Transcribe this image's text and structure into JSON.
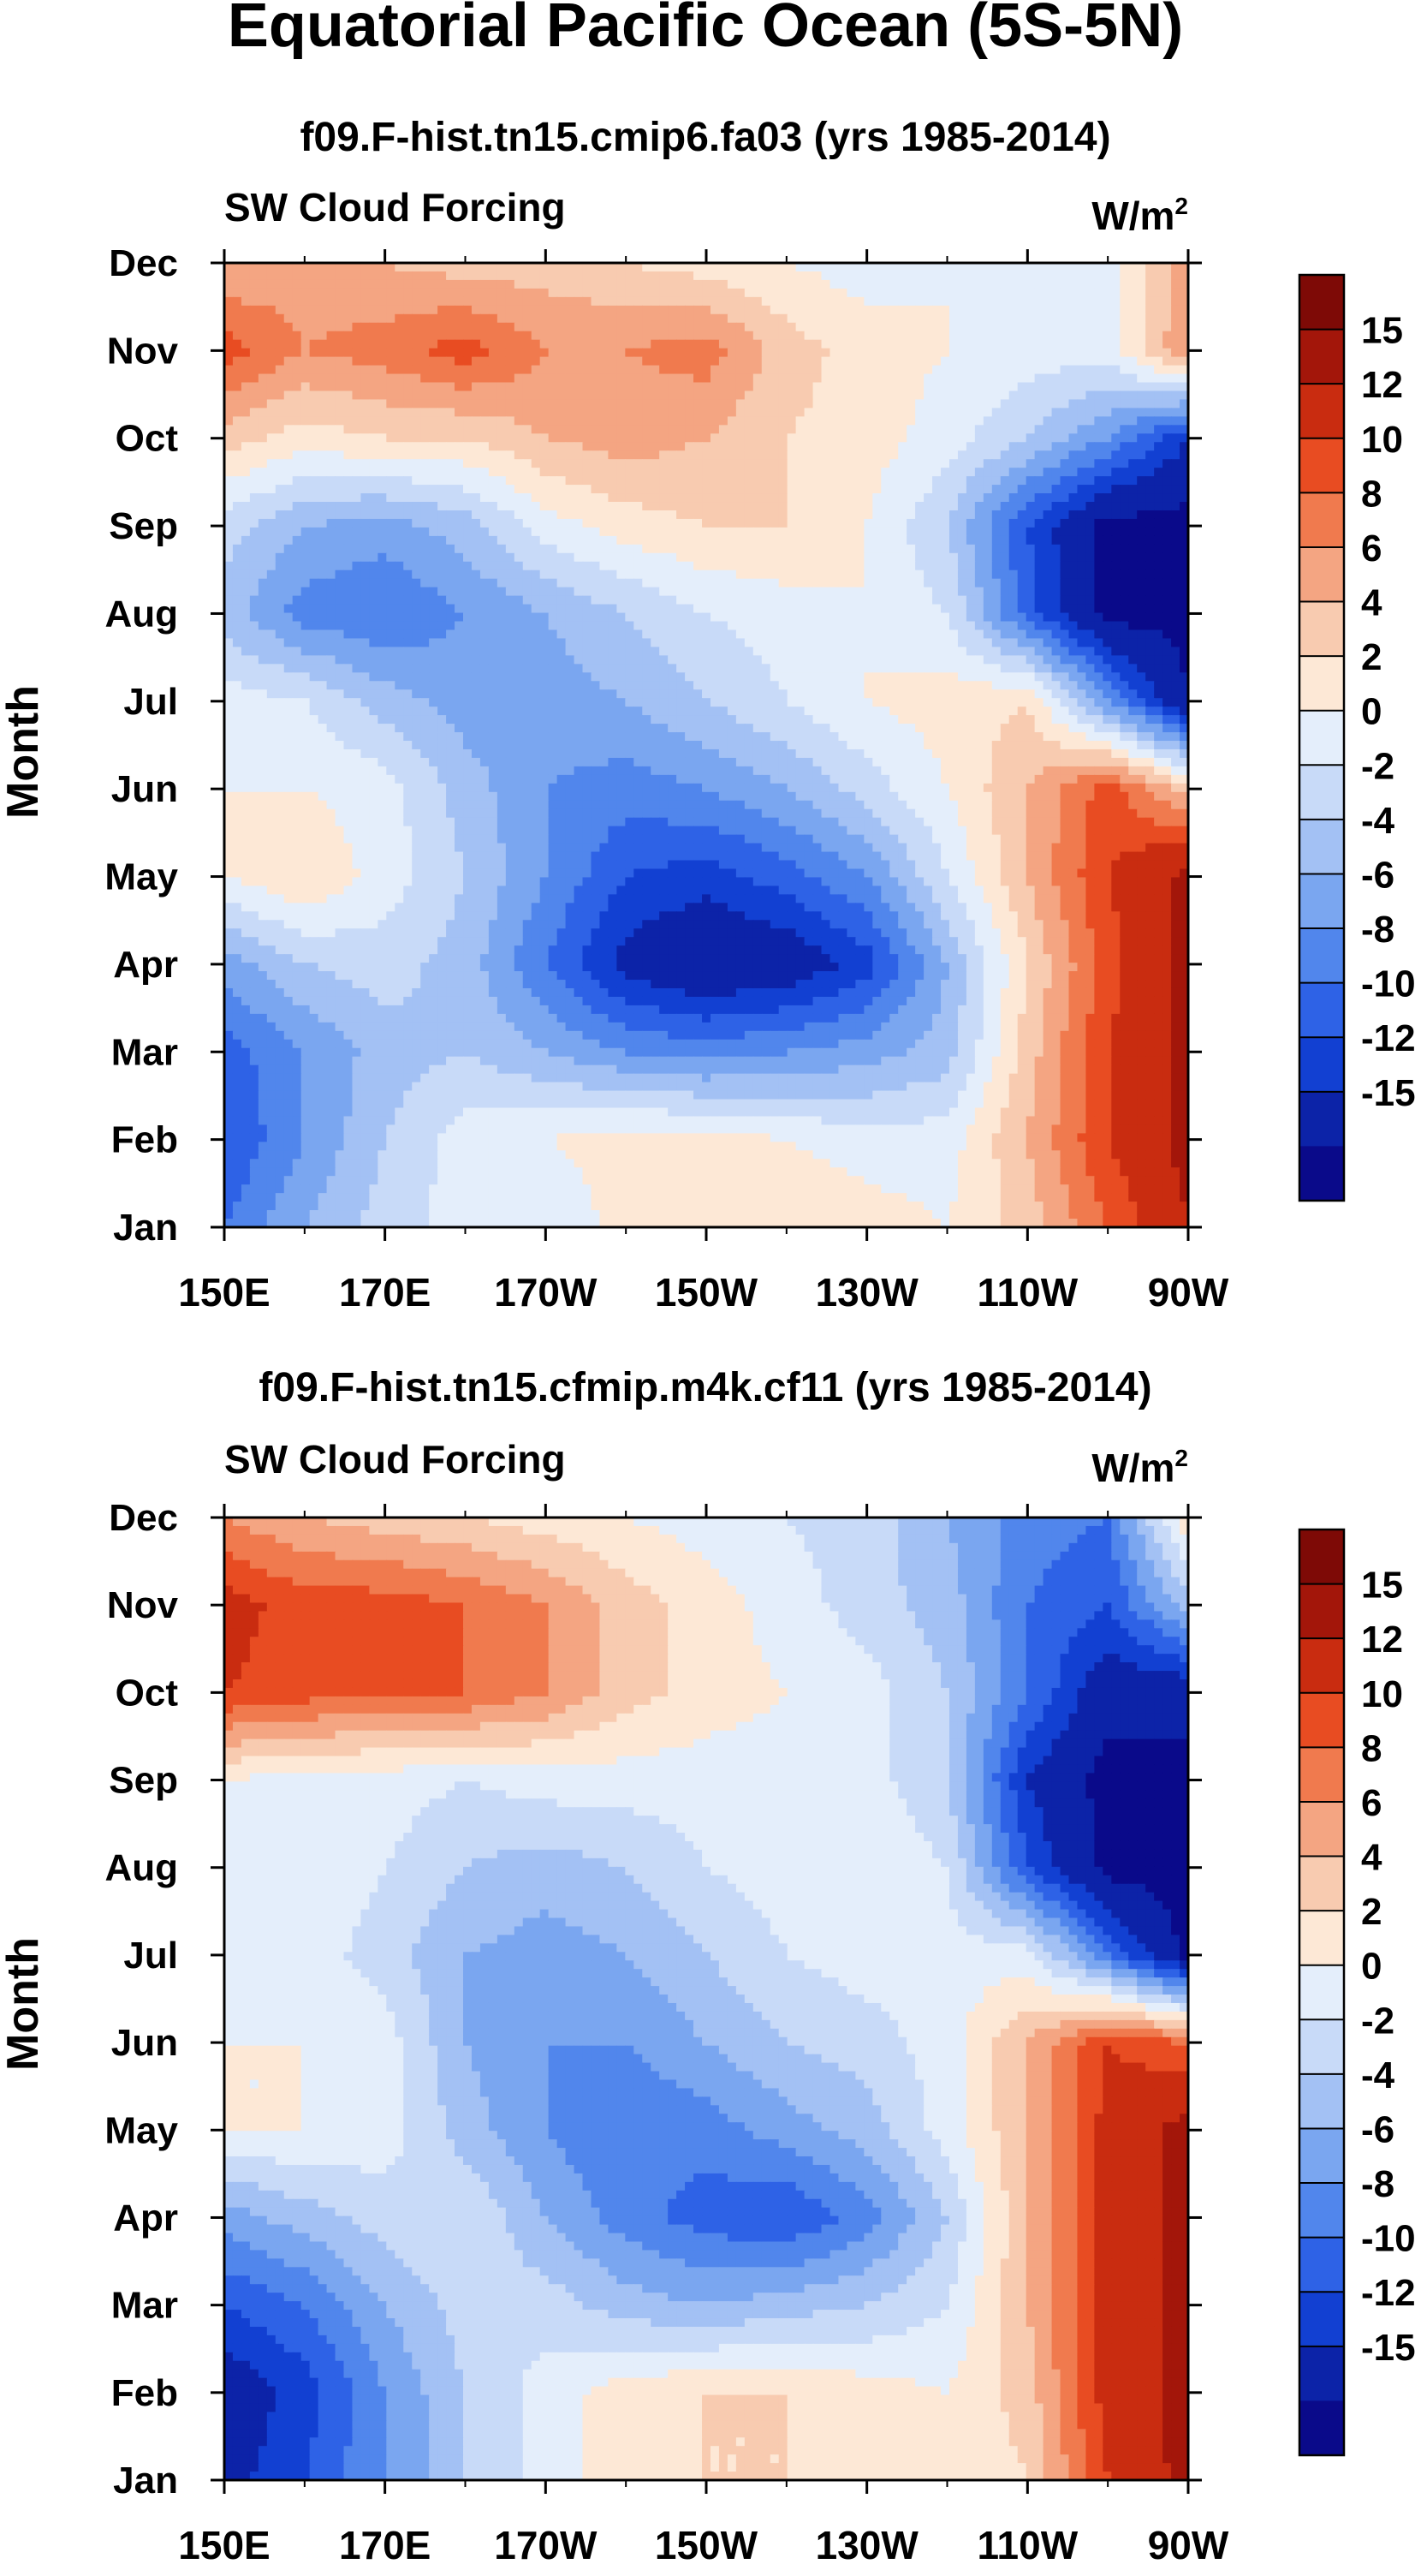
{
  "figure": {
    "title": "Equatorial Pacific Ocean (5S-5N)"
  },
  "colors": [
    "#0a0a8a",
    "#0c23a8",
    "#1240d2",
    "#2e62e6",
    "#5186ec",
    "#7aa6f0",
    "#a3c1f4",
    "#c8daf8",
    "#e4eefb",
    "#fde8d6",
    "#f8cbb0",
    "#f4a582",
    "#f07a4e",
    "#e84c22",
    "#c92c10",
    "#a3160a",
    "#7e0a06"
  ],
  "chart_data": [
    {
      "type": "heatmap",
      "title": "f09.F-hist.tn15.cmip6.fa03 (yrs 1985-2014)",
      "left_label": "SW Cloud Forcing",
      "units_label": "W/m",
      "units_sup": "2",
      "ylabel": "Month",
      "xlabel": "",
      "x_ticks": [
        "150E",
        "170E",
        "170W",
        "150W",
        "130W",
        "110W",
        "90W"
      ],
      "x_values": [
        150,
        160,
        170,
        180,
        190,
        200,
        210,
        220,
        230,
        240,
        250,
        260,
        270
      ],
      "y_ticks": [
        "Jan",
        "Feb",
        "Mar",
        "Apr",
        "May",
        "Jun",
        "Jul",
        "Aug",
        "Sep",
        "Oct",
        "Nov",
        "Dec"
      ],
      "colorbar": {
        "levels": [
          -15,
          -12,
          -10,
          -8,
          -6,
          -4,
          -2,
          0,
          2,
          4,
          6,
          8,
          10,
          12,
          15
        ],
        "labels": [
          "15",
          "12",
          "10",
          "8",
          "6",
          "4",
          "2",
          "0",
          "-2",
          "-4",
          "-6",
          "-8",
          "-10",
          "-12",
          "-15"
        ]
      },
      "z": [
        [
          -8,
          -4,
          -1,
          1,
          0,
          3,
          4,
          4,
          3,
          2,
          5,
          10,
          15
        ],
        [
          -10,
          -6,
          -2,
          1,
          2,
          3,
          3,
          2,
          1,
          1,
          6,
          12,
          16
        ],
        [
          -9,
          -6,
          -3,
          -2,
          -4,
          -6,
          -7,
          -6,
          -5,
          -3,
          5,
          12,
          16
        ],
        [
          -5,
          -2,
          -1,
          -3,
          -8,
          -13,
          -15,
          -14,
          -11,
          -4,
          4,
          11,
          16
        ],
        [
          2,
          4,
          1,
          -2,
          -6,
          -10,
          -11,
          -9,
          -6,
          0,
          6,
          12,
          16
        ],
        [
          2,
          2,
          1,
          -3,
          -6,
          -7,
          -6,
          -4,
          -1,
          2,
          6,
          11,
          5
        ],
        [
          1,
          0,
          -3,
          -5,
          -5,
          -4,
          -2,
          0,
          2,
          3,
          4,
          -6,
          -15
        ],
        [
          -3,
          -7,
          -8,
          -6,
          -4,
          -2,
          0,
          1,
          2,
          0,
          -9,
          -16,
          -16
        ],
        [
          -1,
          -4,
          -5,
          -3,
          1,
          3,
          4,
          4,
          2,
          -2,
          -10,
          -16,
          -16
        ],
        [
          5,
          3,
          4,
          4,
          6,
          7,
          6,
          4,
          3,
          1,
          -2,
          -6,
          -12
        ],
        [
          11,
          8,
          9,
          11,
          8,
          8,
          9,
          5,
          3,
          2,
          1,
          1,
          8
        ],
        [
          6,
          7,
          6,
          5,
          5,
          4,
          3,
          2,
          1,
          2,
          1,
          1,
          7
        ]
      ]
    },
    {
      "type": "heatmap",
      "title": "f09.F-hist.tn15.cfmip.m4k.cf11 (yrs 1985-2014)",
      "left_label": "SW Cloud Forcing",
      "units_label": "W/m",
      "units_sup": "2",
      "ylabel": "Month",
      "xlabel": "",
      "x_ticks": [
        "150E",
        "170E",
        "170W",
        "150W",
        "130W",
        "110W",
        "90W"
      ],
      "x_values": [
        150,
        160,
        170,
        180,
        190,
        200,
        210,
        220,
        230,
        240,
        250,
        260,
        270
      ],
      "y_ticks": [
        "Jan",
        "Feb",
        "Mar",
        "Apr",
        "May",
        "Jun",
        "Jul",
        "Aug",
        "Sep",
        "Oct",
        "Nov",
        "Dec"
      ],
      "colorbar": {
        "levels": [
          -15,
          -12,
          -10,
          -8,
          -6,
          -4,
          -2,
          0,
          2,
          4,
          6,
          8,
          10,
          12,
          15
        ],
        "labels": [
          "15",
          "12",
          "10",
          "8",
          "6",
          "4",
          "2",
          "0",
          "-2",
          "-4",
          "-6",
          "-8",
          "-10",
          "-12",
          "-15"
        ]
      },
      "z": [
        [
          -13,
          -10,
          -6,
          -2,
          1,
          3,
          4,
          4,
          3,
          2,
          4,
          12,
          16
        ],
        [
          -14,
          -11,
          -6,
          -2,
          1,
          3,
          4,
          4,
          3,
          2,
          5,
          13,
          16
        ],
        [
          -10,
          -8,
          -4,
          -1,
          -1,
          -3,
          -4,
          -3,
          -2,
          0,
          6,
          13,
          16
        ],
        [
          -5,
          -3,
          -1,
          0,
          -4,
          -7,
          -9,
          -10,
          -7,
          -2,
          6,
          13,
          16
        ],
        [
          2,
          2,
          1,
          -3,
          -6,
          -8,
          -7,
          -5,
          -3,
          1,
          6,
          13,
          16
        ],
        [
          2,
          2,
          1,
          -4,
          -6,
          -6,
          -4,
          -2,
          -1,
          1,
          6,
          12,
          10
        ],
        [
          1,
          1,
          -1,
          -4,
          -5,
          -4,
          -2,
          0,
          1,
          1,
          1,
          -8,
          -16
        ],
        [
          1,
          2,
          0,
          -2,
          -3,
          -2,
          0,
          1,
          2,
          0,
          -10,
          -16,
          -16
        ],
        [
          2,
          1,
          1,
          0,
          1,
          1,
          1,
          1,
          1,
          -2,
          -12,
          -16,
          -16
        ],
        [
          12,
          11,
          10,
          10,
          8,
          5,
          3,
          2,
          1,
          -2,
          -8,
          -14,
          -14
        ],
        [
          13,
          11,
          11,
          10,
          8,
          5,
          3,
          1,
          -1,
          -3,
          -8,
          -10,
          -3
        ],
        [
          8,
          6,
          5,
          4,
          3,
          2,
          1,
          0,
          -1,
          -4,
          -7,
          -8,
          4
        ]
      ]
    }
  ]
}
